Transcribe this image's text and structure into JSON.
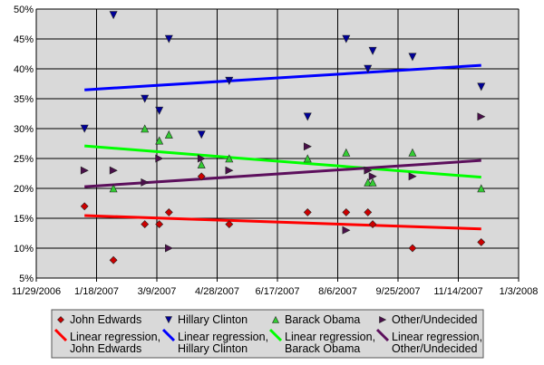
{
  "chart_data": {
    "type": "scatter",
    "title": "",
    "xlabel": "",
    "ylabel": "",
    "x_axis": {
      "type": "date",
      "min": "2006-11-29",
      "max": "2008-01-03",
      "tick_step_days": 50,
      "tick_labels": [
        "11/29/2006",
        "1/18/2007",
        "3/9/2007",
        "4/28/2007",
        "6/17/2007",
        "8/6/2007",
        "9/25/2007",
        "11/14/2007",
        "1/3/2008"
      ]
    },
    "y_axis": {
      "min": 5,
      "max": 50,
      "unit": "%",
      "tick_labels": [
        "5%",
        "10%",
        "15%",
        "20%",
        "25%",
        "30%",
        "35%",
        "40%",
        "45%",
        "50%"
      ]
    },
    "grid": true,
    "legend_placement": "bottom",
    "x": [
      "2007-01-08",
      "2007-02-01",
      "2007-02-27",
      "2007-03-11",
      "2007-03-19",
      "2007-04-15",
      "2007-05-08",
      "2007-07-12",
      "2007-08-13",
      "2007-08-31",
      "2007-09-04",
      "2007-10-07",
      "2007-12-03"
    ],
    "series": [
      {
        "name": "John Edwards",
        "marker": "diamond",
        "color": "#cc0000",
        "values": [
          17,
          8,
          14,
          14,
          16,
          22,
          14,
          16,
          16,
          16,
          14,
          10,
          11
        ]
      },
      {
        "name": "Hillary Clinton",
        "marker": "triangle-down",
        "color": "#000099",
        "values": [
          30,
          49,
          35,
          33,
          45,
          29,
          38,
          32,
          45,
          40,
          43,
          42,
          37
        ]
      },
      {
        "name": "Barack Obama",
        "marker": "triangle-up",
        "color": "#33cc33",
        "values": [
          null,
          20,
          30,
          28,
          29,
          24,
          25,
          25,
          26,
          21,
          21,
          26,
          20
        ]
      },
      {
        "name": "Other/Undecided",
        "marker": "triangle-right",
        "color": "#4b0f4b",
        "values": [
          23,
          23,
          21,
          25,
          10,
          25,
          23,
          27,
          13,
          23,
          22,
          22,
          32
        ]
      }
    ],
    "regression": [
      {
        "name": "Linear regression, John Edwards",
        "line1": "Linear regression,",
        "line2": "John Edwards",
        "color": "#ff0000"
      },
      {
        "name": "Linear regression, Hillary Clinton",
        "line1": "Linear regression,",
        "line2": "Hillary Clinton",
        "color": "#0000ff"
      },
      {
        "name": "Linear regression, Barack Obama",
        "line1": "Linear regression,",
        "line2": "Barack Obama",
        "color": "#00ff00"
      },
      {
        "name": "Linear regression, Other/Undecided",
        "line1": "Linear regression,",
        "line2": "Other/Undecided",
        "color": "#5c0f5c"
      }
    ]
  }
}
